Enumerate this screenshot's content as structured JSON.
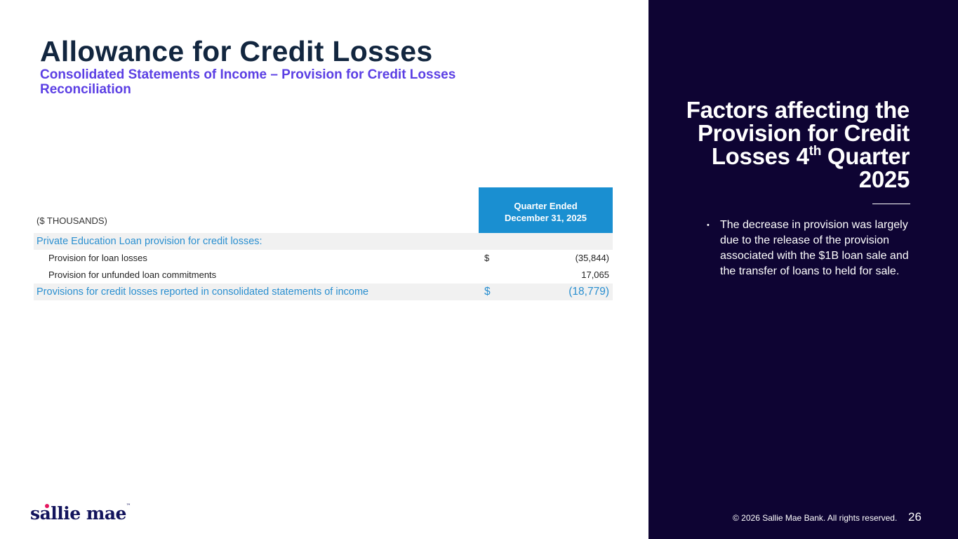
{
  "header": {
    "title": "Allowance for Credit Losses",
    "subtitle": "Consolidated Statements of Income – Provision for Credit Losses Reconciliation"
  },
  "table": {
    "units": "($ THOUSANDS)",
    "column_header_line1": "Quarter Ended",
    "column_header_line2": "December 31, 2025",
    "section_label": "Private Education Loan provision for credit losses:",
    "rows": [
      {
        "label": "Provision for loan losses",
        "currency": "$",
        "value": "(35,844)"
      },
      {
        "label": "Provision for unfunded loan commitments",
        "currency": "",
        "value": "17,065"
      }
    ],
    "total": {
      "label": "Provisions for credit losses reported in consolidated statements of income",
      "currency": "$",
      "value": "(18,779)"
    }
  },
  "sidebar": {
    "title_pre": "Factors affecting the Provision for Credit Losses 4",
    "title_sup": "th",
    "title_post": " Quarter 2025",
    "bullets": [
      "The decrease in provision was largely due to the release of the provision associated with the $1B loan sale and the transfer of loans to held for sale."
    ]
  },
  "footer": {
    "logo": "sallie mae",
    "copyright": "© 2026 Sallie Mae Bank. All rights reserved.",
    "page_number": "26"
  },
  "colors": {
    "panel": "#0e0433",
    "title": "#12263f",
    "subtitle": "#5b3fe4",
    "table_header": "#1a8fd1",
    "accent_blue": "#2a8fd0"
  }
}
